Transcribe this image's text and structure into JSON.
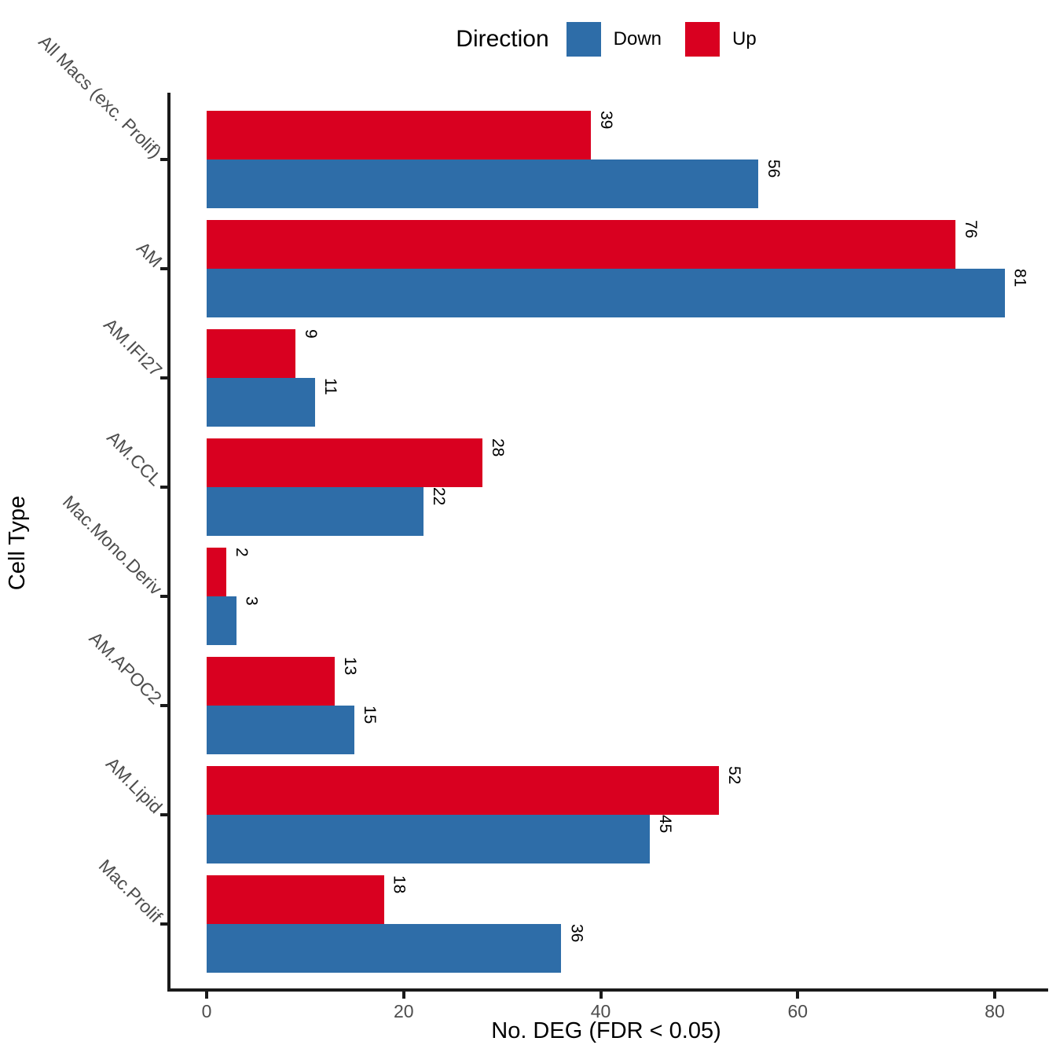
{
  "legend": {
    "title": "Direction",
    "items": [
      {
        "label": "Down",
        "color": "#2E6DA8"
      },
      {
        "label": "Up",
        "color": "#D90020"
      }
    ]
  },
  "axes": {
    "x": {
      "title": "No. DEG (FDR < 0.05)",
      "ticks": [
        0,
        20,
        40,
        60,
        80
      ]
    },
    "y": {
      "title": "Cell Type"
    }
  },
  "chart_data": {
    "type": "bar",
    "orientation": "horizontal",
    "grid": false,
    "legend_position": "top",
    "title": "",
    "xlabel": "No. DEG (FDR < 0.05)",
    "ylabel": "Cell Type",
    "xlim": [
      0,
      85
    ],
    "categories": [
      "All Macs (exc. Prolif)",
      "AM",
      "AM.IFI27",
      "AM.CCL",
      "Mac.Mono.Deriv",
      "AM.APOC2",
      "AM.Lipid",
      "Mac.Prolif"
    ],
    "series": [
      {
        "name": "Up",
        "color": "#D90020",
        "values": [
          39,
          76,
          9,
          28,
          2,
          13,
          52,
          18
        ]
      },
      {
        "name": "Down",
        "color": "#2E6DA8",
        "values": [
          56,
          81,
          11,
          22,
          3,
          15,
          45,
          36
        ]
      }
    ]
  }
}
